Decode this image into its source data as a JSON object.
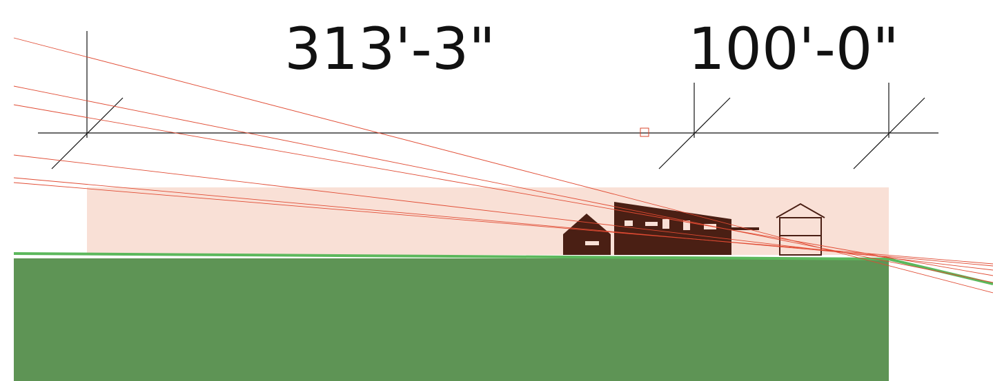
{
  "dimensions": [
    {
      "label": "313'-3\""
    },
    {
      "label": "100'-0\""
    }
  ]
}
